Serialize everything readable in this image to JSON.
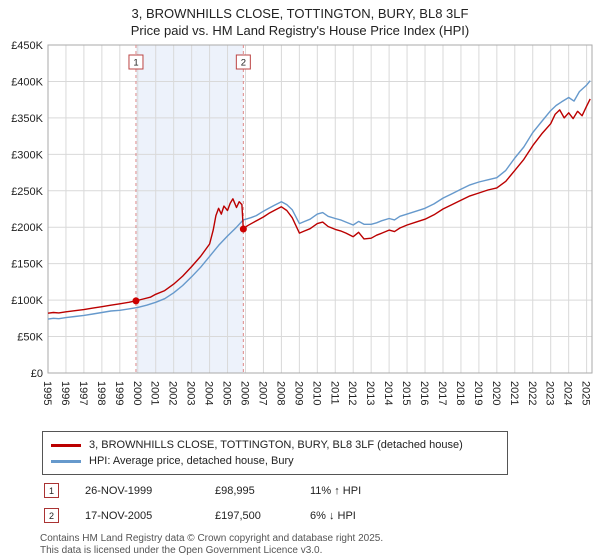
{
  "title": "3, BROWNHILLS CLOSE, TOTTINGTON, BURY, BL8 3LF",
  "subtitle": "Price paid vs. HM Land Registry's House Price Index (HPI)",
  "chart_data": {
    "type": "line",
    "x_range": [
      1995,
      2025.3
    ],
    "ylim": [
      0,
      450
    ],
    "grid": true,
    "values_unit": "GBP_thousands",
    "y_ticks": [
      {
        "v": 0,
        "label": "£0"
      },
      {
        "v": 50,
        "label": "£50K"
      },
      {
        "v": 100,
        "label": "£100K"
      },
      {
        "v": 150,
        "label": "£150K"
      },
      {
        "v": 200,
        "label": "£200K"
      },
      {
        "v": 250,
        "label": "£250K"
      },
      {
        "v": 300,
        "label": "£300K"
      },
      {
        "v": 350,
        "label": "£350K"
      },
      {
        "v": 400,
        "label": "£400K"
      },
      {
        "v": 450,
        "label": "£450K"
      }
    ],
    "x_ticks": [
      1995,
      1996,
      1997,
      1998,
      1999,
      2000,
      2001,
      2002,
      2003,
      2004,
      2005,
      2006,
      2007,
      2008,
      2009,
      2010,
      2011,
      2012,
      2013,
      2014,
      2015,
      2016,
      2017,
      2018,
      2019,
      2020,
      2021,
      2022,
      2023,
      2024,
      2025
    ],
    "shaded_region": {
      "from": 1999.9,
      "to": 2005.88,
      "color": "#edf2fb"
    },
    "markers": [
      {
        "label": "1",
        "x": 1999.9,
        "value": 98.995,
        "color": "#cc0000"
      },
      {
        "label": "2",
        "x": 2005.88,
        "value": 197.5,
        "color": "#cc0000"
      }
    ],
    "series": [
      {
        "name": "3, BROWNHILLS CLOSE, TOTTINGTON, BURY, BL8 3LF (detached house)",
        "color": "#bb0000",
        "points": [
          [
            1995,
            82
          ],
          [
            1995.3,
            83
          ],
          [
            1995.6,
            82.5
          ],
          [
            1996,
            84
          ],
          [
            1996.5,
            85.5
          ],
          [
            1997,
            87
          ],
          [
            1997.5,
            89
          ],
          [
            1998,
            91
          ],
          [
            1998.5,
            93
          ],
          [
            1999,
            95
          ],
          [
            1999.5,
            97
          ],
          [
            1999.9,
            99
          ],
          [
            2000.3,
            101.5
          ],
          [
            2000.7,
            104
          ],
          [
            2001,
            108
          ],
          [
            2001.5,
            113
          ],
          [
            2002,
            122
          ],
          [
            2002.5,
            133
          ],
          [
            2003,
            146
          ],
          [
            2003.5,
            160
          ],
          [
            2004,
            177
          ],
          [
            2004.2,
            196
          ],
          [
            2004.35,
            216
          ],
          [
            2004.5,
            226
          ],
          [
            2004.65,
            218
          ],
          [
            2004.8,
            229
          ],
          [
            2005,
            223
          ],
          [
            2005.15,
            233
          ],
          [
            2005.3,
            239
          ],
          [
            2005.5,
            227
          ],
          [
            2005.65,
            235
          ],
          [
            2005.8,
            231
          ],
          [
            2005.88,
            197.5
          ],
          [
            2006.1,
            202
          ],
          [
            2006.4,
            206
          ],
          [
            2006.7,
            210
          ],
          [
            2007,
            214
          ],
          [
            2007.3,
            219
          ],
          [
            2007.6,
            223
          ],
          [
            2008,
            228
          ],
          [
            2008.3,
            223
          ],
          [
            2008.6,
            213
          ],
          [
            2009,
            192
          ],
          [
            2009.3,
            195
          ],
          [
            2009.6,
            198
          ],
          [
            2010,
            205
          ],
          [
            2010.3,
            207
          ],
          [
            2010.6,
            201
          ],
          [
            2011,
            197
          ],
          [
            2011.3,
            195
          ],
          [
            2011.6,
            192
          ],
          [
            2012,
            187
          ],
          [
            2012.3,
            193
          ],
          [
            2012.6,
            184
          ],
          [
            2013,
            185
          ],
          [
            2013.3,
            189
          ],
          [
            2013.6,
            192
          ],
          [
            2014,
            196
          ],
          [
            2014.3,
            194
          ],
          [
            2014.6,
            199
          ],
          [
            2015,
            203
          ],
          [
            2015.5,
            207
          ],
          [
            2016,
            211
          ],
          [
            2016.5,
            217
          ],
          [
            2017,
            225
          ],
          [
            2017.5,
            231
          ],
          [
            2018,
            237
          ],
          [
            2018.5,
            243
          ],
          [
            2019,
            247
          ],
          [
            2019.5,
            251
          ],
          [
            2020,
            254
          ],
          [
            2020.5,
            263
          ],
          [
            2021,
            278
          ],
          [
            2021.5,
            293
          ],
          [
            2022,
            312
          ],
          [
            2022.5,
            328
          ],
          [
            2023,
            342
          ],
          [
            2023.25,
            355
          ],
          [
            2023.5,
            361
          ],
          [
            2023.75,
            350
          ],
          [
            2024,
            357
          ],
          [
            2024.25,
            349
          ],
          [
            2024.5,
            359
          ],
          [
            2024.75,
            353
          ],
          [
            2025,
            366
          ],
          [
            2025.2,
            376
          ]
        ]
      },
      {
        "name": "HPI: Average price, detached house, Bury",
        "color": "#6699cc",
        "points": [
          [
            1995,
            74
          ],
          [
            1995.3,
            75
          ],
          [
            1995.6,
            74.5
          ],
          [
            1996,
            76
          ],
          [
            1996.5,
            77.5
          ],
          [
            1997,
            79
          ],
          [
            1997.5,
            81
          ],
          [
            1998,
            83
          ],
          [
            1998.5,
            85
          ],
          [
            1999,
            86
          ],
          [
            1999.5,
            88
          ],
          [
            2000,
            90
          ],
          [
            2000.5,
            93
          ],
          [
            2001,
            97
          ],
          [
            2001.5,
            102
          ],
          [
            2002,
            110
          ],
          [
            2002.5,
            120
          ],
          [
            2003,
            132
          ],
          [
            2003.5,
            145
          ],
          [
            2004,
            160
          ],
          [
            2004.5,
            175
          ],
          [
            2005,
            188
          ],
          [
            2005.5,
            200
          ],
          [
            2005.88,
            210
          ],
          [
            2006.3,
            213
          ],
          [
            2006.6,
            216
          ],
          [
            2007,
            222
          ],
          [
            2007.3,
            226
          ],
          [
            2007.6,
            230
          ],
          [
            2008,
            235
          ],
          [
            2008.3,
            231
          ],
          [
            2008.6,
            224
          ],
          [
            2009,
            205
          ],
          [
            2009.3,
            208
          ],
          [
            2009.6,
            211
          ],
          [
            2010,
            218
          ],
          [
            2010.3,
            220
          ],
          [
            2010.6,
            215
          ],
          [
            2011,
            212
          ],
          [
            2011.3,
            210
          ],
          [
            2011.6,
            207
          ],
          [
            2012,
            203
          ],
          [
            2012.3,
            208
          ],
          [
            2012.6,
            204
          ],
          [
            2013,
            204
          ],
          [
            2013.3,
            206
          ],
          [
            2013.6,
            209
          ],
          [
            2014,
            212
          ],
          [
            2014.3,
            210
          ],
          [
            2014.6,
            215
          ],
          [
            2015,
            218
          ],
          [
            2015.5,
            222
          ],
          [
            2016,
            226
          ],
          [
            2016.5,
            232
          ],
          [
            2017,
            240
          ],
          [
            2017.5,
            246
          ],
          [
            2018,
            252
          ],
          [
            2018.5,
            258
          ],
          [
            2019,
            262
          ],
          [
            2019.5,
            265
          ],
          [
            2020,
            268
          ],
          [
            2020.5,
            278
          ],
          [
            2021,
            295
          ],
          [
            2021.5,
            310
          ],
          [
            2022,
            330
          ],
          [
            2022.5,
            345
          ],
          [
            2023,
            360
          ],
          [
            2023.3,
            367
          ],
          [
            2023.6,
            372
          ],
          [
            2024,
            378
          ],
          [
            2024.3,
            373
          ],
          [
            2024.6,
            386
          ],
          [
            2025,
            395
          ],
          [
            2025.2,
            401
          ]
        ]
      }
    ]
  },
  "legend": {
    "items": [
      {
        "label": "3, BROWNHILLS CLOSE, TOTTINGTON, BURY, BL8 3LF (detached house)",
        "color": "#bb0000"
      },
      {
        "label": "HPI: Average price, detached house, Bury",
        "color": "#6699cc"
      }
    ]
  },
  "transactions": [
    {
      "num": "1",
      "date": "26-NOV-1999",
      "price": "£98,995",
      "hpi": "11% ↑ HPI"
    },
    {
      "num": "2",
      "date": "17-NOV-2005",
      "price": "£197,500",
      "hpi": "6% ↓ HPI"
    }
  ],
  "footer": {
    "line1": "Contains HM Land Registry data © Crown copyright and database right 2025.",
    "line2": "This data is licensed under the Open Government Licence v3.0."
  }
}
